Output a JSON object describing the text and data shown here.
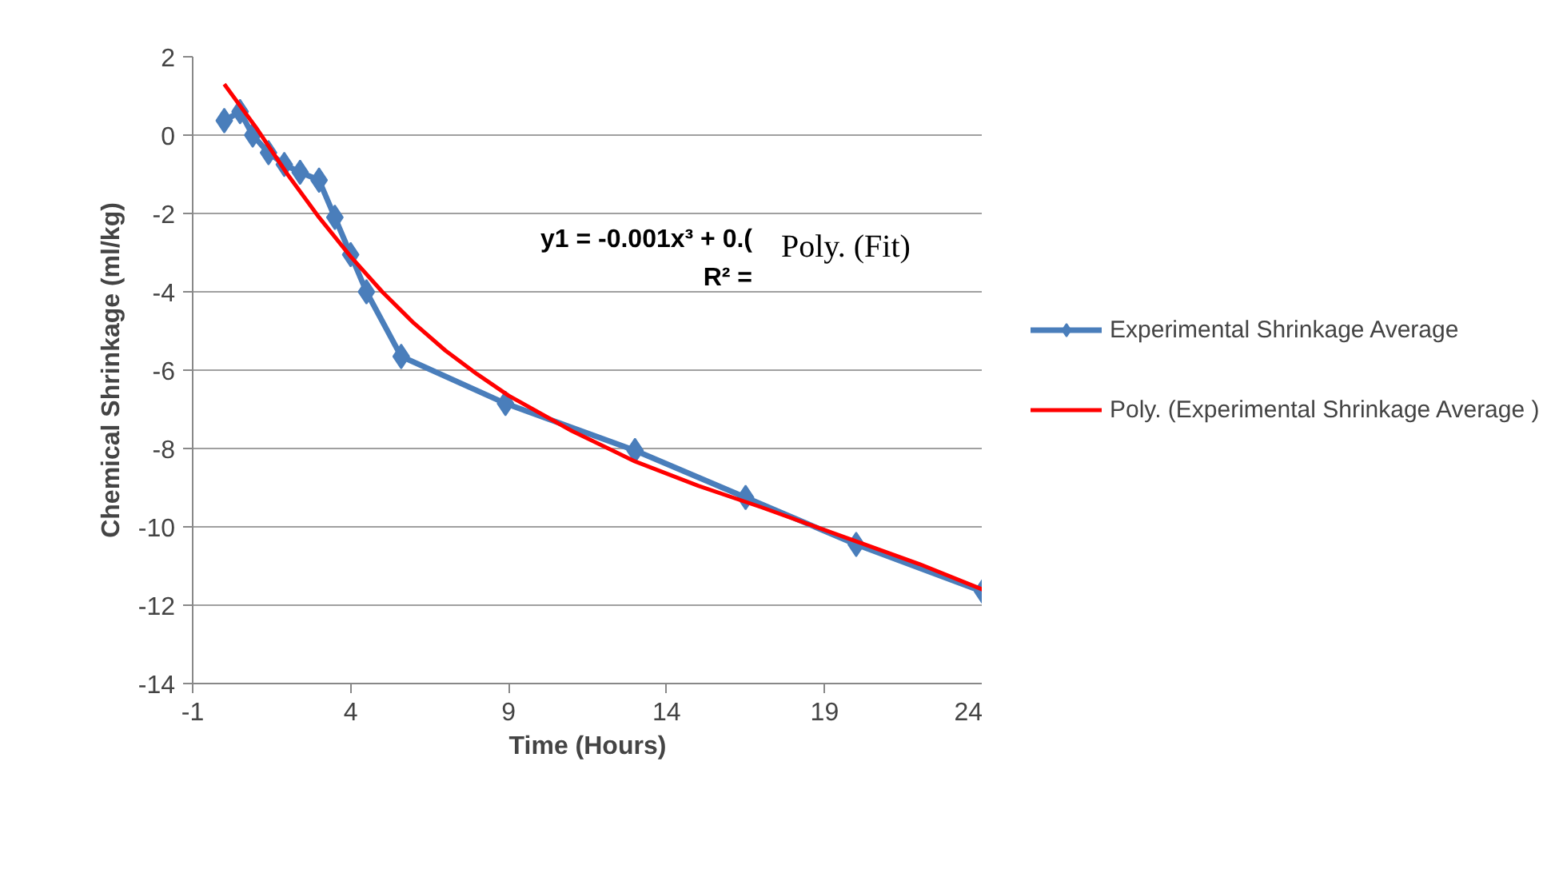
{
  "chart_data": {
    "type": "line",
    "xlabel": "Time (Hours)",
    "ylabel": "Chemical Shrinkage (ml/kg)",
    "xlim": [
      -1,
      24
    ],
    "xticks": [
      -1,
      4,
      9,
      14,
      19,
      24
    ],
    "ylim": [
      -14,
      2
    ],
    "yticks": [
      -14,
      -12,
      -10,
      -8,
      -6,
      -4,
      -2,
      0,
      2
    ],
    "grid": "y",
    "legend": "right",
    "line_style": "solid",
    "annotations": [
      "y1 = -0.001x³ + 0.(",
      "R² =",
      "Poly. (Fit)"
    ],
    "series": [
      {
        "name": "Experimental Shrinkage Average",
        "color": "#4a7ebb",
        "marker": "diamond",
        "x": [
          0,
          0.5,
          0.9,
          1.4,
          1.9,
          2.4,
          3.0,
          3.5,
          4.0,
          4.5,
          5.6,
          8.9,
          13.0,
          16.5,
          20.0,
          24.0
        ],
        "values": [
          0.37,
          0.6,
          0,
          -0.45,
          -0.75,
          -0.95,
          -1.15,
          -2.1,
          -3.05,
          -4.0,
          -5.65,
          -6.85,
          -8.05,
          -9.25,
          -10.45,
          -11.65
        ]
      },
      {
        "name": "Poly. (Experimental Shrinkage Average )",
        "color": "#ff0000",
        "marker": "none",
        "x": [
          0,
          1,
          2,
          3,
          4,
          5,
          6,
          7,
          8,
          9,
          11,
          13,
          15,
          17,
          20,
          22,
          24
        ],
        "values": [
          1.3,
          0.2,
          -1.0,
          -2.1,
          -3.1,
          -4.0,
          -4.8,
          -5.5,
          -6.1,
          -6.65,
          -7.55,
          -8.33,
          -8.95,
          -9.5,
          -10.37,
          -10.95,
          -11.6
        ]
      }
    ]
  }
}
